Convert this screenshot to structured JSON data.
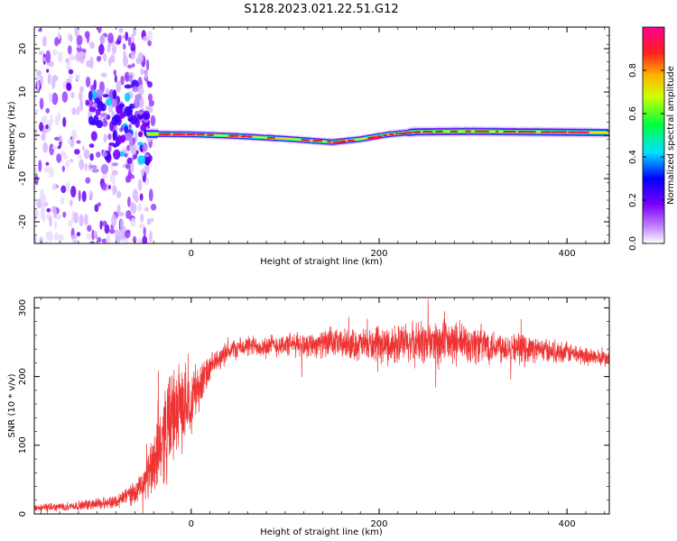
{
  "title": "S128.2023.021.22.51.G12",
  "chart_data": [
    {
      "type": "heatmap",
      "xlabel": "Height of straight line (km)",
      "ylabel": "Frequency (Hz)",
      "xlim": [
        -167,
        445
      ],
      "ylim": [
        -25,
        25
      ],
      "x_ticks": [
        0,
        200,
        400
      ],
      "y_ticks": [
        -20,
        -10,
        0,
        10,
        20
      ],
      "grid": false,
      "colorbar": {
        "label": "Normalized spectral amplitude",
        "range": [
          0,
          1
        ],
        "ticks": [
          "0.0",
          "0.2",
          "0.4",
          "0.6",
          "0.8"
        ],
        "colormap": [
          "#ffffff",
          "#8000ff",
          "#0000ff",
          "#00ffff",
          "#00ff00",
          "#ffff00",
          "#ff8000",
          "#ff0000",
          "#ff0080"
        ]
      },
      "ridge": {
        "description_x": [
          -45,
          0,
          50,
          100,
          150,
          180,
          210,
          240,
          300,
          350,
          445
        ],
        "frequency_hz": [
          0.3,
          0.2,
          -0.2,
          -0.8,
          -1.6,
          -0.9,
          0.2,
          0.8,
          0.9,
          0.8,
          0.6
        ]
      },
      "noise_region_x": [
        -167,
        -50
      ]
    },
    {
      "type": "line",
      "xlabel": "Height of straight line (km)",
      "ylabel": "SNR (10 * v/v)",
      "xlim": [
        -167,
        445
      ],
      "ylim": [
        0,
        315
      ],
      "x_ticks": [
        0,
        200,
        400
      ],
      "y_ticks": [
        0,
        100,
        200,
        300
      ],
      "color": "#ee3333",
      "grid": false,
      "series": [
        {
          "x": [
            -167,
            -120,
            -80,
            -50,
            -40,
            -25,
            -15,
            0,
            15,
            25,
            40,
            60,
            100,
            150,
            200,
            250,
            300,
            350,
            400,
            445
          ],
          "mean": [
            8,
            12,
            18,
            40,
            80,
            130,
            150,
            170,
            200,
            220,
            238,
            244,
            246,
            248,
            245,
            250,
            248,
            242,
            235,
            225
          ],
          "spread": [
            6,
            8,
            12,
            25,
            70,
            90,
            80,
            60,
            30,
            20,
            18,
            18,
            20,
            24,
            30,
            40,
            36,
            24,
            18,
            14
          ]
        }
      ]
    }
  ]
}
